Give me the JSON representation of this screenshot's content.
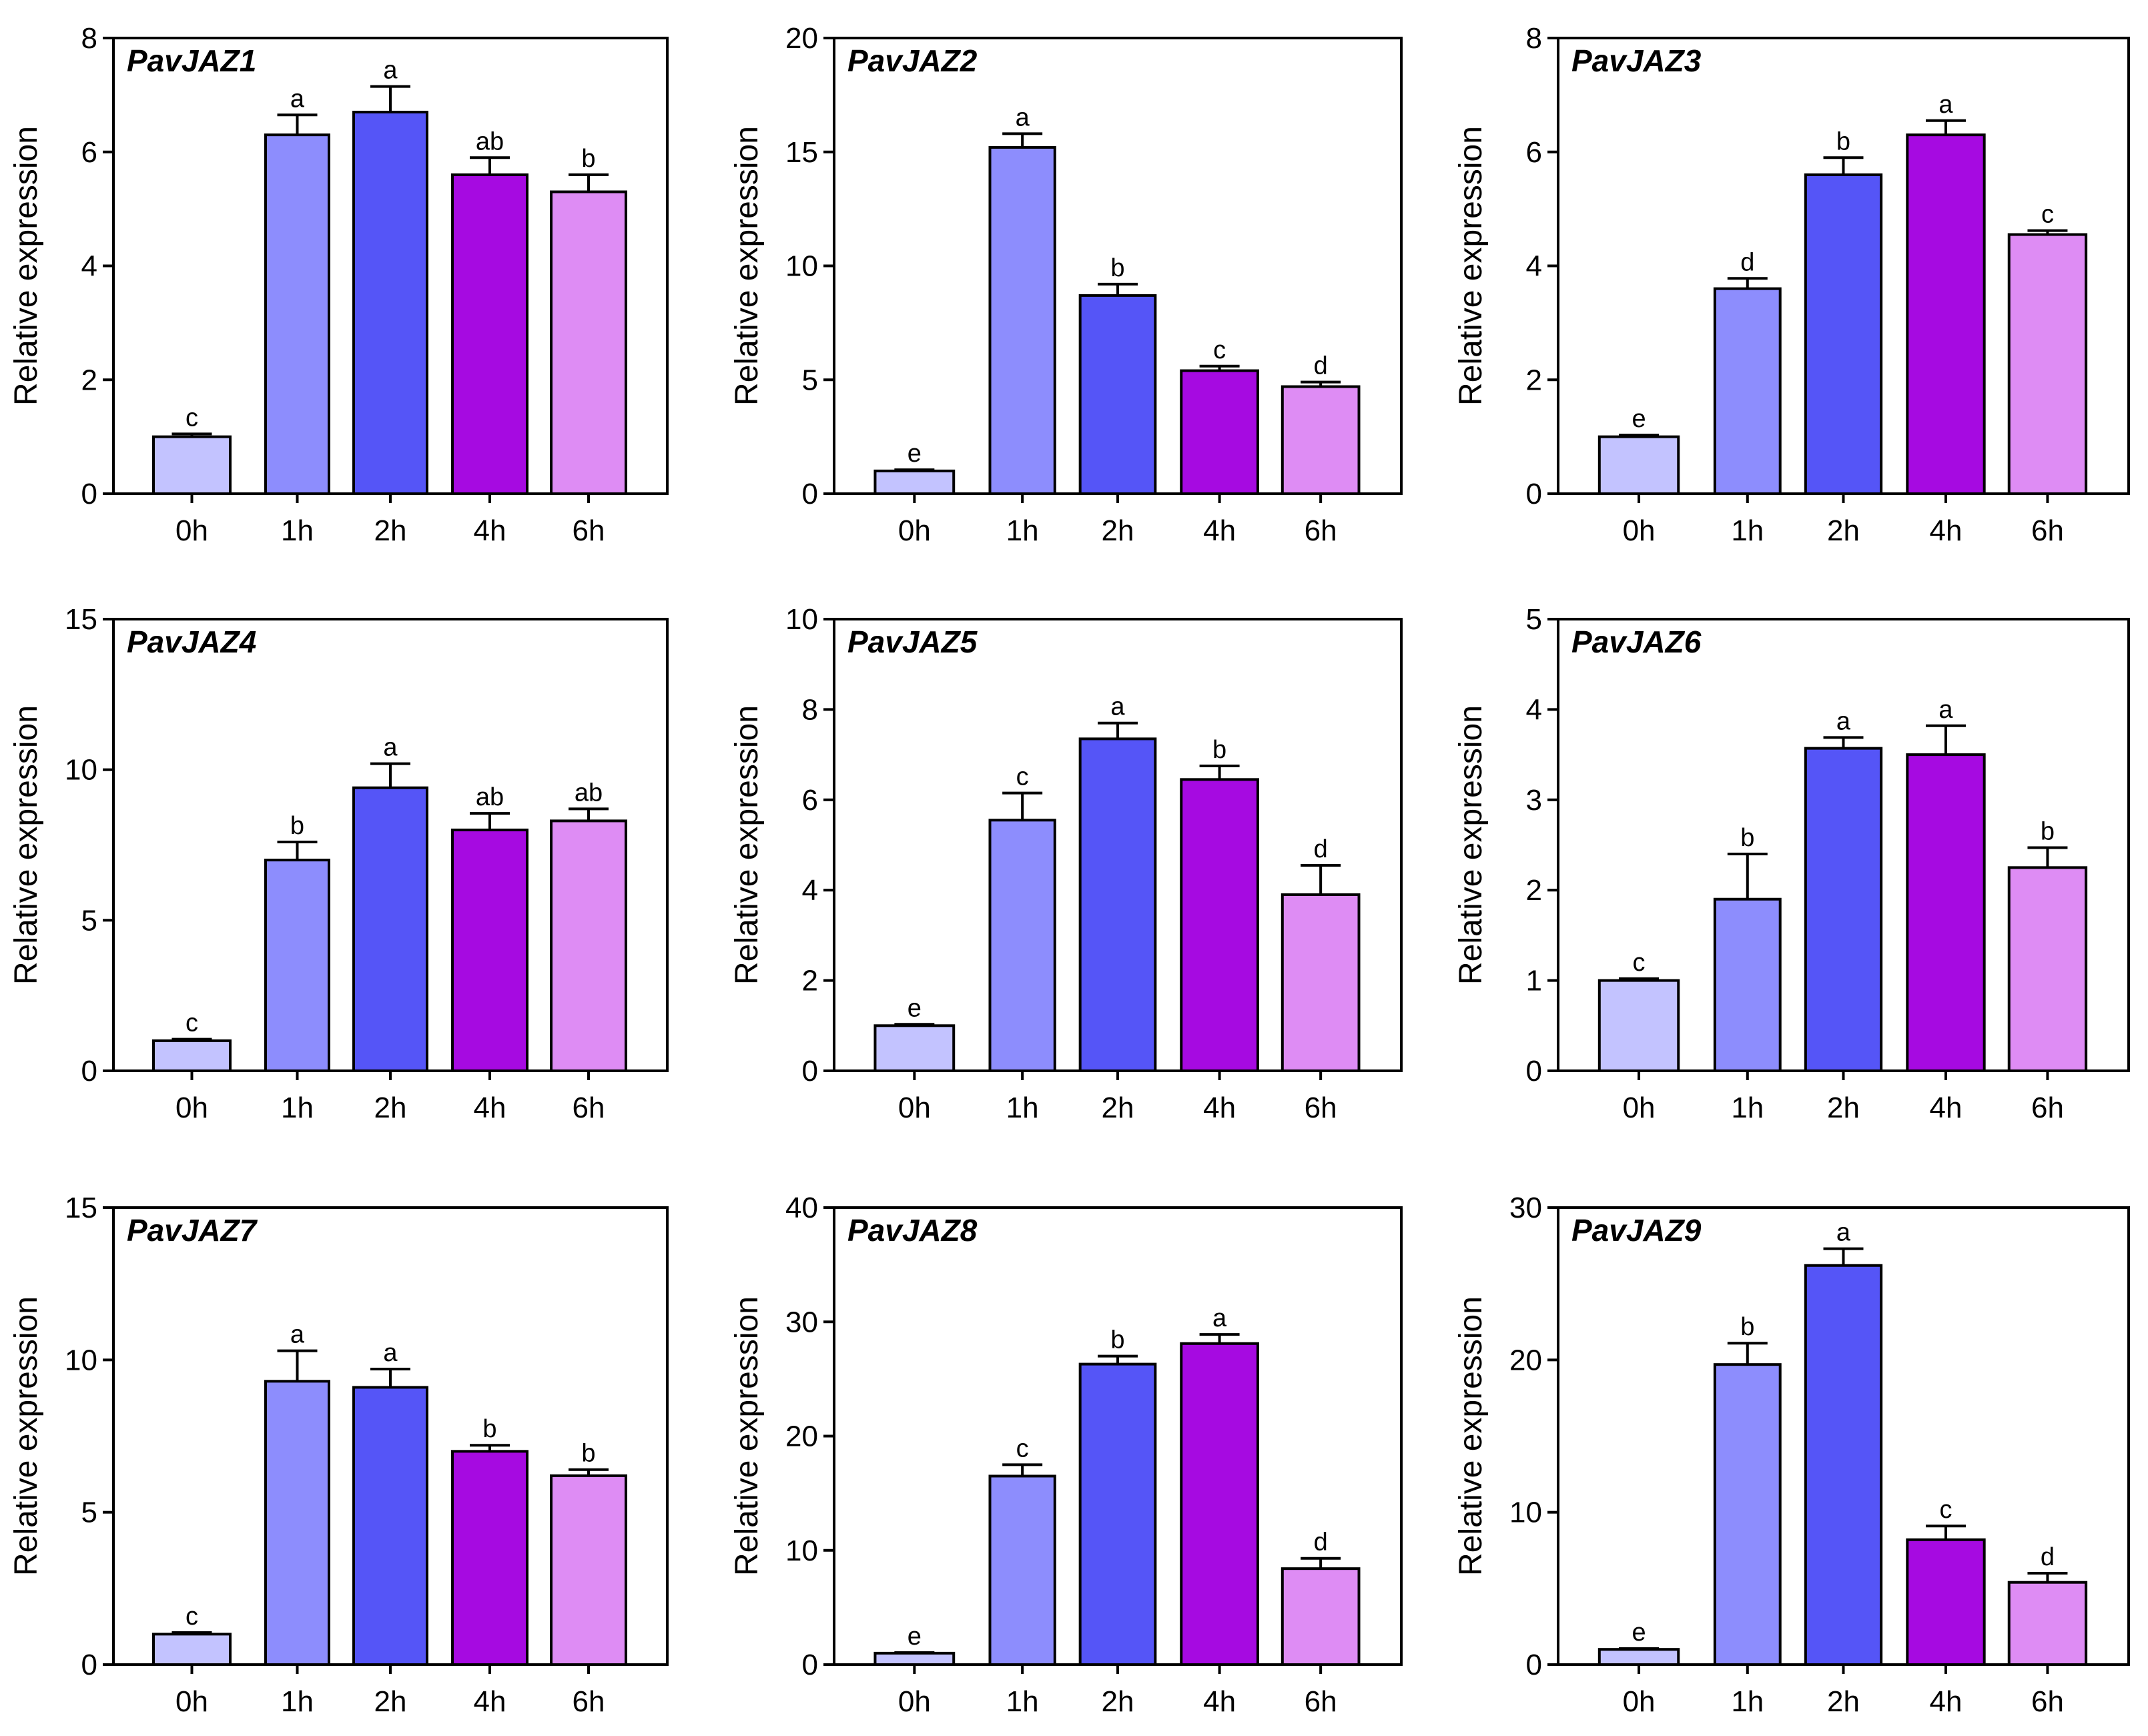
{
  "figure": {
    "ylabel": "Relative expression",
    "categories": [
      "0h",
      "1h",
      "2h",
      "4h",
      "6h"
    ],
    "bar_colors": [
      "#c3c3ff",
      "#8d8dfd",
      "#5555f7",
      "#a60ae1",
      "#de8cf4"
    ]
  },
  "chart_data": [
    {
      "type": "bar",
      "title": "PavJAZ1",
      "categories": [
        "0h",
        "1h",
        "2h",
        "4h",
        "6h"
      ],
      "values": [
        1.0,
        6.3,
        6.7,
        5.6,
        5.3
      ],
      "errors": [
        0.05,
        0.35,
        0.45,
        0.3,
        0.3
      ],
      "significance": [
        "c",
        "a",
        "a",
        "ab",
        "b"
      ],
      "ylabel": "Relative expression",
      "ylim": [
        0,
        8
      ],
      "yticks": [
        0,
        2,
        4,
        6,
        8
      ]
    },
    {
      "type": "bar",
      "title": "PavJAZ2",
      "categories": [
        "0h",
        "1h",
        "2h",
        "4h",
        "6h"
      ],
      "values": [
        1.0,
        15.2,
        8.7,
        5.4,
        4.7
      ],
      "errors": [
        0.05,
        0.6,
        0.5,
        0.2,
        0.2
      ],
      "significance": [
        "e",
        "a",
        "b",
        "c",
        "d"
      ],
      "ylabel": "Relative expression",
      "ylim": [
        0,
        20
      ],
      "yticks": [
        0,
        5,
        10,
        15,
        20
      ]
    },
    {
      "type": "bar",
      "title": "PavJAZ3",
      "categories": [
        "0h",
        "1h",
        "2h",
        "4h",
        "6h"
      ],
      "values": [
        1.0,
        3.6,
        5.6,
        6.3,
        4.55
      ],
      "errors": [
        0.03,
        0.18,
        0.3,
        0.25,
        0.07
      ],
      "significance": [
        "e",
        "d",
        "b",
        "a",
        "c"
      ],
      "ylabel": "Relative expression",
      "ylim": [
        0,
        8
      ],
      "yticks": [
        0,
        2,
        4,
        6,
        8
      ]
    },
    {
      "type": "bar",
      "title": "PavJAZ4",
      "categories": [
        "0h",
        "1h",
        "2h",
        "4h",
        "6h"
      ],
      "values": [
        1.0,
        7.0,
        9.4,
        8.0,
        8.3
      ],
      "errors": [
        0.05,
        0.6,
        0.8,
        0.55,
        0.4
      ],
      "significance": [
        "c",
        "b",
        "a",
        "ab",
        "ab"
      ],
      "ylabel": "Relative expression",
      "ylim": [
        0,
        15
      ],
      "yticks": [
        0,
        5,
        10,
        15
      ]
    },
    {
      "type": "bar",
      "title": "PavJAZ5",
      "categories": [
        "0h",
        "1h",
        "2h",
        "4h",
        "6h"
      ],
      "values": [
        1.0,
        5.55,
        7.35,
        6.45,
        3.9
      ],
      "errors": [
        0.03,
        0.6,
        0.35,
        0.3,
        0.65
      ],
      "significance": [
        "e",
        "c",
        "a",
        "b",
        "d"
      ],
      "ylabel": "Relative expression",
      "ylim": [
        0,
        10
      ],
      "yticks": [
        0,
        2,
        4,
        6,
        8,
        10
      ]
    },
    {
      "type": "bar",
      "title": "PavJAZ6",
      "categories": [
        "0h",
        "1h",
        "2h",
        "4h",
        "6h"
      ],
      "values": [
        1.0,
        1.9,
        3.57,
        3.5,
        2.25
      ],
      "errors": [
        0.02,
        0.5,
        0.12,
        0.32,
        0.22
      ],
      "significance": [
        "c",
        "b",
        "a",
        "a",
        "b"
      ],
      "ylabel": "Relative expression",
      "ylim": [
        0,
        5
      ],
      "yticks": [
        0,
        1,
        2,
        3,
        4,
        5
      ]
    },
    {
      "type": "bar",
      "title": "PavJAZ7",
      "categories": [
        "0h",
        "1h",
        "2h",
        "4h",
        "6h"
      ],
      "values": [
        1.0,
        9.3,
        9.1,
        7.0,
        6.2
      ],
      "errors": [
        0.05,
        1.0,
        0.6,
        0.2,
        0.2
      ],
      "significance": [
        "c",
        "a",
        "a",
        "b",
        "b"
      ],
      "ylabel": "Relative expression",
      "ylim": [
        0,
        15
      ],
      "yticks": [
        0,
        5,
        10,
        15
      ]
    },
    {
      "type": "bar",
      "title": "PavJAZ8",
      "categories": [
        "0h",
        "1h",
        "2h",
        "4h",
        "6h"
      ],
      "values": [
        1.0,
        16.5,
        26.3,
        28.1,
        8.4
      ],
      "errors": [
        0.05,
        1.0,
        0.7,
        0.8,
        0.9
      ],
      "significance": [
        "e",
        "c",
        "b",
        "a",
        "d"
      ],
      "ylabel": "Relative expression",
      "ylim": [
        0,
        40
      ],
      "yticks": [
        0,
        10,
        20,
        30,
        40
      ]
    },
    {
      "type": "bar",
      "title": "PavJAZ9",
      "categories": [
        "0h",
        "1h",
        "2h",
        "4h",
        "6h"
      ],
      "values": [
        1.0,
        19.7,
        26.2,
        8.2,
        5.4
      ],
      "errors": [
        0.05,
        1.4,
        1.1,
        0.9,
        0.6
      ],
      "significance": [
        "e",
        "b",
        "a",
        "c",
        "d"
      ],
      "ylabel": "Relative expression",
      "ylim": [
        0,
        30
      ],
      "yticks": [
        0,
        10,
        20,
        30
      ]
    }
  ]
}
